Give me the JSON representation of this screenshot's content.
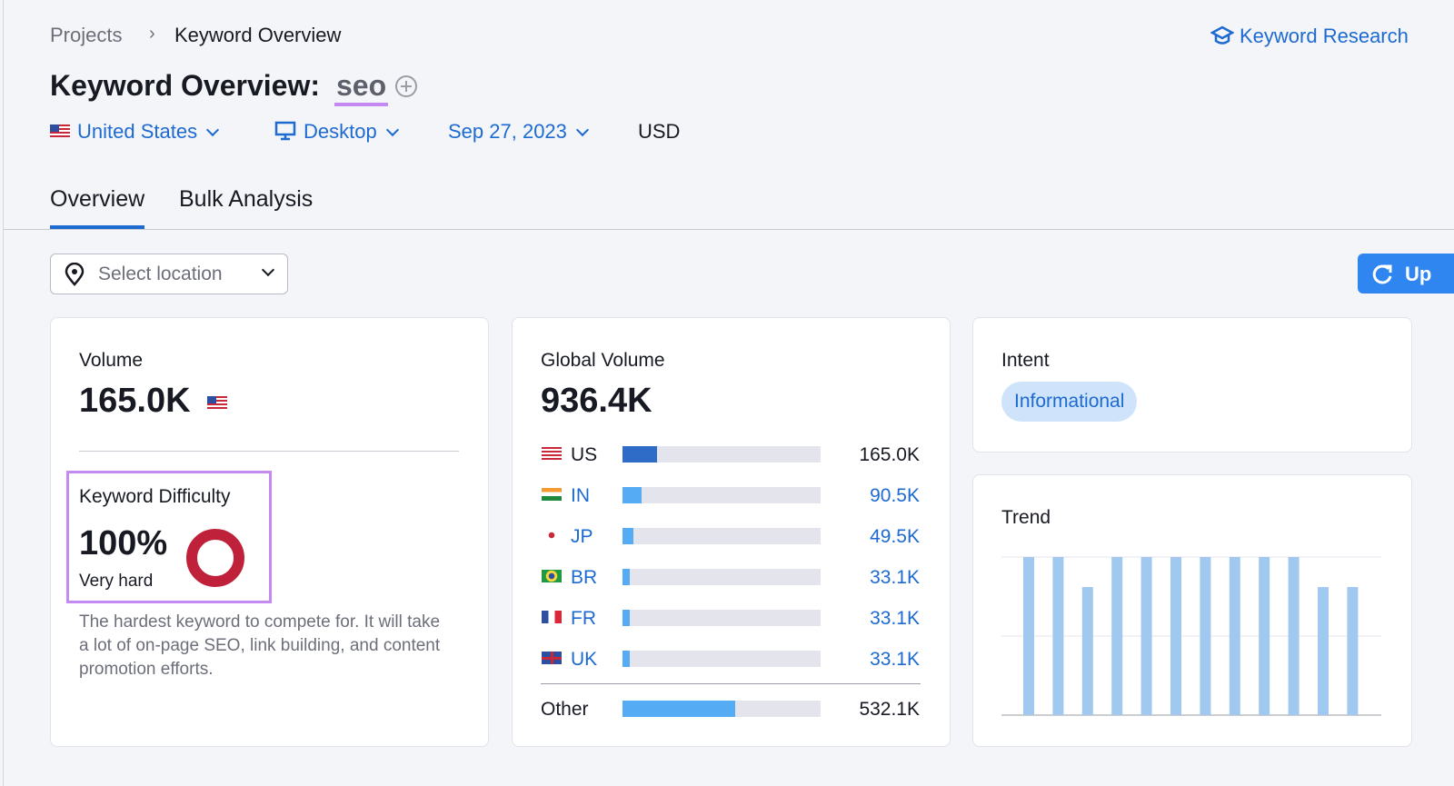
{
  "breadcrumbs": [
    "Projects",
    "Keyword Overview"
  ],
  "header_link": "Keyword Research",
  "title": "Keyword Overview:",
  "keyword": "seo",
  "filters": {
    "country": "United States",
    "device": "Desktop",
    "date": "Sep 27, 2023",
    "currency": "USD"
  },
  "tabs": [
    "Overview",
    "Bulk Analysis"
  ],
  "location_placeholder": "Select location",
  "update_button": "Up",
  "volume": {
    "label": "Volume",
    "value": "165.0K"
  },
  "keyword_difficulty": {
    "label": "Keyword Difficulty",
    "value": 100,
    "value_label": "100%",
    "level": "Very hard",
    "description": "The hardest keyword to compete for. It will take a lot of on-page SEO, link building, and content promotion efforts."
  },
  "global_volume": {
    "label": "Global Volume",
    "total": {
      "value": 936400,
      "label": "936.4K"
    },
    "countries": [
      {
        "code": "US",
        "value": 165000,
        "value_label": "165.0K"
      },
      {
        "code": "IN",
        "value": 90500,
        "value_label": "90.5K"
      },
      {
        "code": "JP",
        "value": 49500,
        "value_label": "49.5K"
      },
      {
        "code": "BR",
        "value": 33100,
        "value_label": "33.1K"
      },
      {
        "code": "FR",
        "value": 33100,
        "value_label": "33.1K"
      },
      {
        "code": "UK",
        "value": 33100,
        "value_label": "33.1K"
      }
    ],
    "other": {
      "name": "Other",
      "value": 532100,
      "value_label": "532.1K"
    }
  },
  "intent": {
    "label": "Intent",
    "value": "Informational"
  },
  "trend": {
    "label": "Trend",
    "values": [
      100,
      100,
      81,
      100,
      100,
      100,
      100,
      100,
      100,
      100,
      81,
      81
    ],
    "ylim": [
      0,
      100
    ]
  }
}
